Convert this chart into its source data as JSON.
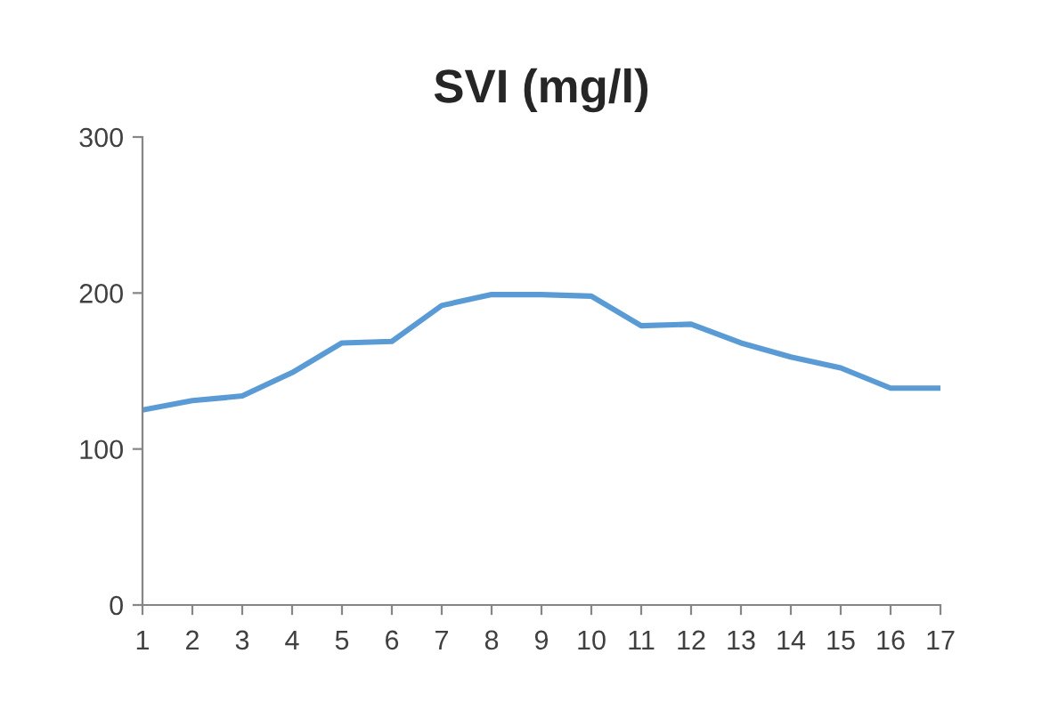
{
  "chart_data": {
    "type": "line",
    "title": "SVI (mg/l)",
    "categories": [
      "1",
      "2",
      "3",
      "4",
      "5",
      "6",
      "7",
      "8",
      "9",
      "10",
      "11",
      "12",
      "13",
      "14",
      "15",
      "16",
      "17"
    ],
    "series": [
      {
        "color": "#5b9bd5",
        "values": [
          125,
          131,
          134,
          149,
          168,
          169,
          192,
          199,
          199,
          198,
          179,
          180,
          168,
          159,
          152,
          139,
          139
        ]
      }
    ],
    "ylim": [
      0,
      300
    ],
    "yticks": [
      0,
      100,
      200,
      300
    ],
    "grid": false,
    "marker": "none",
    "line_style": "solid"
  }
}
